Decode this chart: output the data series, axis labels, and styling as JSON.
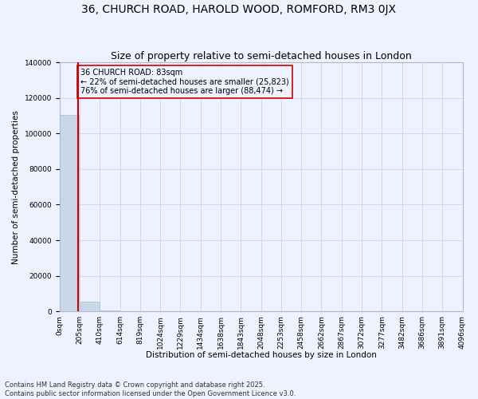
{
  "title": "36, CHURCH ROAD, HAROLD WOOD, ROMFORD, RM3 0JX",
  "subtitle": "Size of property relative to semi-detached houses in London",
  "xlabel": "Distribution of semi-detached houses by size in London",
  "ylabel": "Number of semi-detached properties",
  "bar_color": "#c8d8e8",
  "bar_edge_color": "#a8bece",
  "property_line_color": "#cc0000",
  "property_line_x": 0.4,
  "annotation_text": "36 CHURCH ROAD: 83sqm\n← 22% of semi-detached houses are smaller (25,823)\n76% of semi-detached houses are larger (88,474) →",
  "annotation_box_color": "#cc0000",
  "annotation_bg": "#eef2ff",
  "footer": "Contains HM Land Registry data © Crown copyright and database right 2025.\nContains public sector information licensed under the Open Government Licence v3.0.",
  "bin_labels": [
    "0sqm",
    "205sqm",
    "410sqm",
    "614sqm",
    "819sqm",
    "1024sqm",
    "1229sqm",
    "1434sqm",
    "1638sqm",
    "1843sqm",
    "2048sqm",
    "2253sqm",
    "2458sqm",
    "2662sqm",
    "2867sqm",
    "3072sqm",
    "3277sqm",
    "3482sqm",
    "3686sqm",
    "3891sqm",
    "4096sqm"
  ],
  "bin_counts": [
    110297,
    5300,
    400,
    100,
    50,
    30,
    20,
    15,
    10,
    8,
    6,
    5,
    4,
    3,
    3,
    2,
    2,
    2,
    1,
    1
  ],
  "ylim": [
    0,
    140000
  ],
  "yticks": [
    0,
    20000,
    40000,
    60000,
    80000,
    100000,
    120000,
    140000
  ],
  "background_color": "#eef2ff",
  "grid_color": "#d0d8f0",
  "title_fontsize": 10,
  "subtitle_fontsize": 9,
  "axis_label_fontsize": 7.5,
  "tick_fontsize": 6.5,
  "footer_fontsize": 6,
  "annotation_fontsize": 7
}
